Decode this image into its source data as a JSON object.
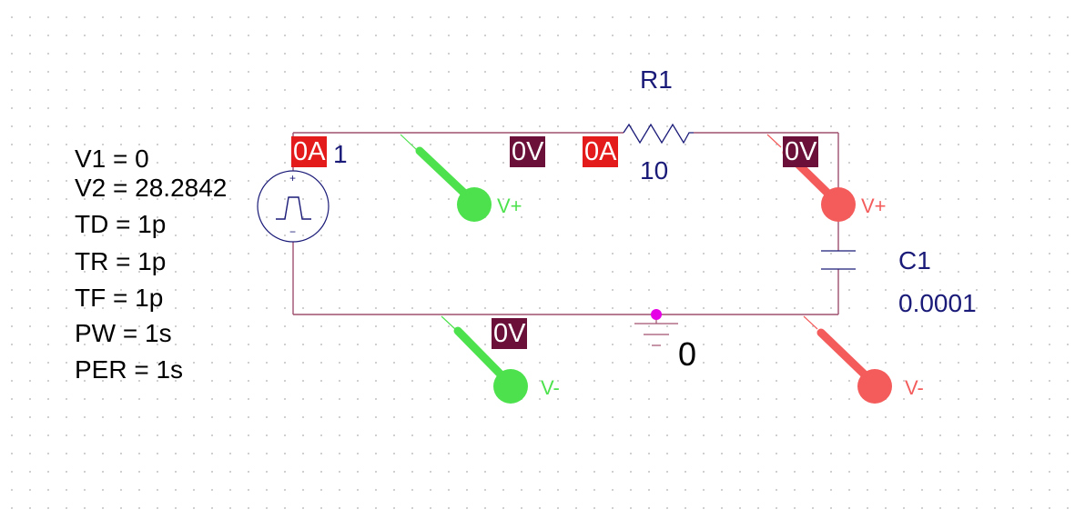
{
  "source": {
    "params": [
      "V1 = 0",
      "V2 = 28.2842",
      "TD = 1p",
      "TR = 1p",
      "TF = 1p",
      "PW = 1s",
      "PER = 1s"
    ],
    "ref_suffix": "1",
    "plus_sign": "+",
    "minus_sign": "−"
  },
  "resistor": {
    "name": "R1",
    "value": "10"
  },
  "capacitor": {
    "name": "C1",
    "value": "0.0001"
  },
  "ground": {
    "label": "0"
  },
  "markers": {
    "source_current": "0A",
    "resistor_current": "0A",
    "node_top_left": "0V",
    "node_top_right": "0V",
    "node_bottom": "0V"
  },
  "probes": {
    "green_plus": "V+",
    "green_minus": "V-",
    "red_plus": "V+",
    "red_minus": "V-"
  },
  "colors": {
    "wire": "#a0506e",
    "symbol": "#1a1a78",
    "probe_green": "#4de24d",
    "probe_red": "#f45c5c",
    "current_marker": "#e41b1b",
    "voltage_marker": "#6b1139",
    "ground_dot": "#e600e6"
  }
}
